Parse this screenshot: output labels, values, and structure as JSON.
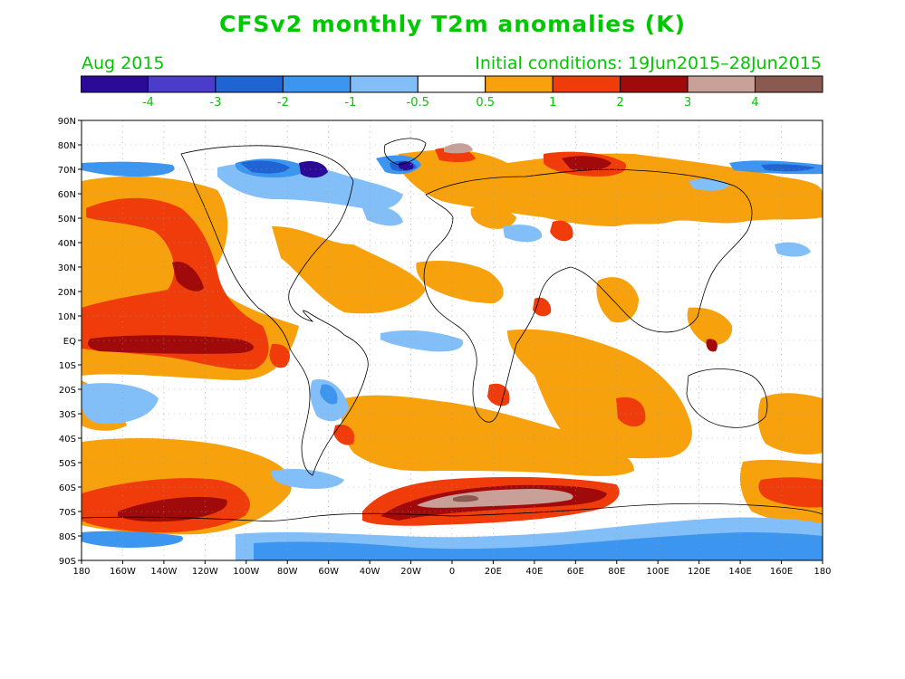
{
  "title": "CFSv2 monthly T2m anomalies (K)",
  "valid_month": "Aug 2015",
  "initial_conditions": "Initial conditions: 19Jun2015–28Jun2015",
  "colorbar": {
    "colors": [
      "#2a0a96",
      "#4b3ccc",
      "#1f64d2",
      "#3c96f0",
      "#82bff8",
      "#ffffff",
      "#f7a10d",
      "#f03c0a",
      "#a00a0a",
      "#c8a098",
      "#8a5a50"
    ],
    "labels": [
      "-4",
      "-3",
      "-2",
      "-1",
      "-0.5",
      "0.5",
      "1",
      "2",
      "3",
      "4"
    ],
    "label_color": "#00c800"
  },
  "axes": {
    "lat_labels": [
      "90N",
      "80N",
      "70N",
      "60N",
      "50N",
      "40N",
      "30N",
      "20N",
      "10N",
      "EQ",
      "10S",
      "20S",
      "30S",
      "40S",
      "50S",
      "60S",
      "70S",
      "80S",
      "90S"
    ],
    "lon_labels": [
      "180",
      "160W",
      "140W",
      "120W",
      "100W",
      "80W",
      "60W",
      "40W",
      "20W",
      "0",
      "20E",
      "40E",
      "60E",
      "80E",
      "100E",
      "120E",
      "140E",
      "160E",
      "180"
    ]
  },
  "colors": {
    "title": "#00c800",
    "warm_weak": "#f7a10d",
    "warm_moderate": "#f03c0a",
    "warm_strong": "#a00a0a",
    "warm_extreme": "#c8a098",
    "cold_weak": "#82bff8",
    "cold_moderate": "#3c96f0",
    "cold_strong": "#1f64d2",
    "cold_extreme": "#2a0a96"
  }
}
